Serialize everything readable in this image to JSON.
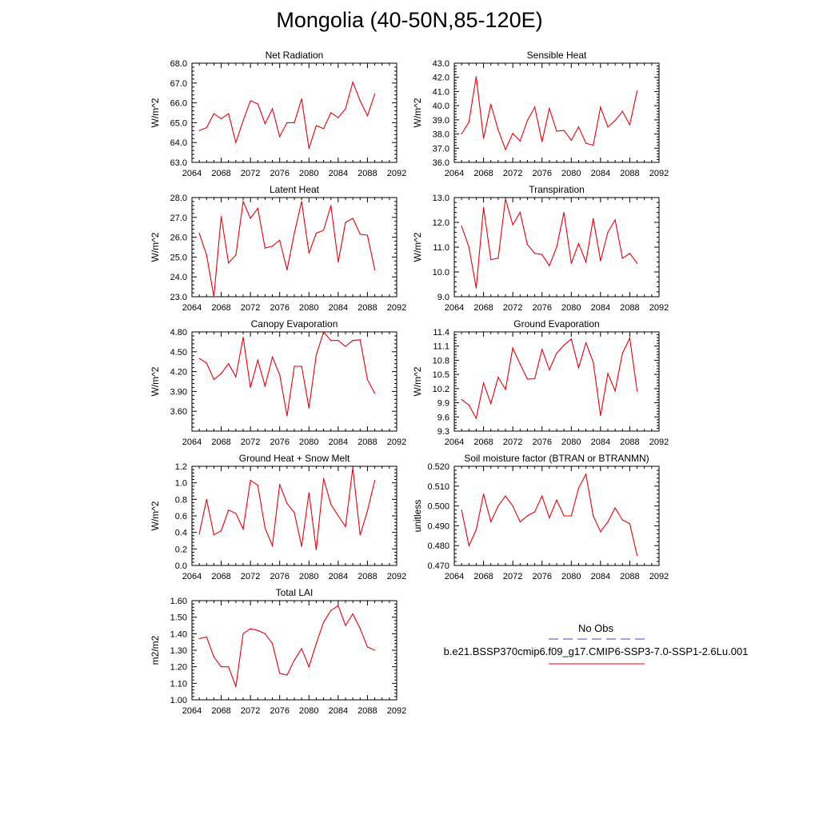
{
  "title": "Mongolia (40-50N,85-120E)",
  "colors": {
    "model_line": "#e8000b",
    "obs_line": "#4a4aa0",
    "axis": "#000000"
  },
  "legend": {
    "obs_label": "No Obs",
    "model_label": "b.e21.BSSP370cmip6.f09_g17.CMIP6-SSP3-7.0-SSP1-2.6Lu.001"
  },
  "chart_data": [
    {
      "type": "line",
      "title": "Net Radiation",
      "ylabel": "W/m^2",
      "xlim": [
        2064,
        2092
      ],
      "xticks": [
        "2064",
        "2068",
        "2072",
        "2076",
        "2080",
        "2084",
        "2088",
        "2092"
      ],
      "ylim": [
        63,
        68
      ],
      "yticks": [
        "63.0",
        "64.0",
        "65.0",
        "66.0",
        "67.0",
        "68.0"
      ],
      "series": [
        {
          "x": [
            2065,
            2066,
            2067,
            2068,
            2069,
            2070,
            2071,
            2072,
            2073,
            2074,
            2075,
            2076,
            2077,
            2078,
            2079,
            2080,
            2081,
            2082,
            2083,
            2084,
            2085,
            2086,
            2087,
            2088,
            2089
          ],
          "values": [
            64.6,
            64.75,
            65.45,
            65.2,
            65.45,
            64.0,
            65.1,
            66.1,
            65.95,
            64.95,
            65.7,
            64.3,
            65.0,
            65.0,
            66.2,
            63.7,
            64.85,
            64.7,
            65.5,
            65.25,
            65.7,
            67.05,
            66.1,
            65.35,
            66.45
          ]
        }
      ]
    },
    {
      "type": "line",
      "title": "Sensible Heat",
      "ylabel": "W/m^2",
      "xlim": [
        2064,
        2092
      ],
      "xticks": [
        "2064",
        "2068",
        "2072",
        "2076",
        "2080",
        "2084",
        "2088",
        "2092"
      ],
      "ylim": [
        36,
        43
      ],
      "yticks": [
        "36.0",
        "37.0",
        "38.0",
        "39.0",
        "40.0",
        "41.0",
        "42.0",
        "43.0"
      ],
      "series": [
        {
          "x": [
            2065,
            2066,
            2067,
            2068,
            2069,
            2070,
            2071,
            2072,
            2073,
            2074,
            2075,
            2076,
            2077,
            2078,
            2079,
            2080,
            2081,
            2082,
            2083,
            2084,
            2085,
            2086,
            2087,
            2088,
            2089
          ],
          "values": [
            38.0,
            38.85,
            42.05,
            37.7,
            40.1,
            38.3,
            36.9,
            38.05,
            37.5,
            38.95,
            39.9,
            37.45,
            39.8,
            38.2,
            38.25,
            37.55,
            38.5,
            37.35,
            37.2,
            39.9,
            38.5,
            38.95,
            39.6,
            38.65,
            41.05
          ]
        }
      ]
    },
    {
      "type": "line",
      "title": "Latent Heat",
      "ylabel": "W/m^2",
      "xlim": [
        2064,
        2092
      ],
      "xticks": [
        "2064",
        "2068",
        "2072",
        "2076",
        "2080",
        "2084",
        "2088",
        "2092"
      ],
      "ylim": [
        23,
        28
      ],
      "yticks": [
        "23.0",
        "24.0",
        "25.0",
        "26.0",
        "27.0",
        "28.0"
      ],
      "series": [
        {
          "x": [
            2065,
            2066,
            2067,
            2068,
            2069,
            2070,
            2071,
            2072,
            2073,
            2074,
            2075,
            2076,
            2077,
            2078,
            2079,
            2080,
            2081,
            2082,
            2083,
            2084,
            2085,
            2086,
            2087,
            2088,
            2089
          ],
          "values": [
            26.2,
            25.1,
            23.0,
            27.05,
            24.7,
            25.1,
            27.8,
            26.95,
            27.45,
            25.45,
            25.55,
            25.85,
            24.35,
            26.2,
            27.8,
            25.2,
            26.2,
            26.35,
            27.6,
            24.75,
            26.75,
            26.95,
            26.15,
            26.1,
            24.35
          ]
        }
      ]
    },
    {
      "type": "line",
      "title": "Transpiration",
      "ylabel": "W/m^2",
      "xlim": [
        2064,
        2092
      ],
      "xticks": [
        "2064",
        "2068",
        "2072",
        "2076",
        "2080",
        "2084",
        "2088",
        "2092"
      ],
      "ylim": [
        9,
        13
      ],
      "yticks": [
        "9.0",
        "10.0",
        "11.0",
        "12.0",
        "13.0"
      ],
      "series": [
        {
          "x": [
            2065,
            2066,
            2067,
            2068,
            2069,
            2070,
            2071,
            2072,
            2073,
            2074,
            2075,
            2076,
            2077,
            2078,
            2079,
            2080,
            2081,
            2082,
            2083,
            2084,
            2085,
            2086,
            2087,
            2088,
            2089
          ],
          "values": [
            11.85,
            11.0,
            9.35,
            12.6,
            10.5,
            10.55,
            12.95,
            11.9,
            12.4,
            11.1,
            10.75,
            10.7,
            10.25,
            11.0,
            12.4,
            10.35,
            11.15,
            10.4,
            12.15,
            10.45,
            11.6,
            12.1,
            10.55,
            10.75,
            10.35
          ]
        }
      ]
    },
    {
      "type": "line",
      "title": "Canopy Evaporation",
      "ylabel": "W/m^2",
      "xlim": [
        2064,
        2092
      ],
      "xticks": [
        "2064",
        "2068",
        "2072",
        "2076",
        "2080",
        "2084",
        "2088",
        "2092"
      ],
      "ylim": [
        3.3,
        4.8
      ],
      "yticks": [
        "3.60",
        "3.90",
        "4.20",
        "4.50",
        "4.80"
      ],
      "series": [
        {
          "x": [
            2065,
            2066,
            2067,
            2068,
            2069,
            2070,
            2071,
            2072,
            2073,
            2074,
            2075,
            2076,
            2077,
            2078,
            2079,
            2080,
            2081,
            2082,
            2083,
            2084,
            2085,
            2086,
            2087,
            2088,
            2089
          ],
          "values": [
            4.4,
            4.33,
            4.08,
            4.17,
            4.32,
            4.12,
            4.72,
            3.96,
            4.37,
            3.98,
            4.42,
            4.15,
            3.53,
            4.28,
            4.28,
            3.65,
            4.45,
            4.8,
            4.67,
            4.67,
            4.58,
            4.67,
            4.68,
            4.08,
            3.87
          ]
        }
      ]
    },
    {
      "type": "line",
      "title": "Ground Evaporation",
      "ylabel": "W/m^2",
      "xlim": [
        2064,
        2092
      ],
      "xticks": [
        "2064",
        "2068",
        "2072",
        "2076",
        "2080",
        "2084",
        "2088",
        "2092"
      ],
      "ylim": [
        9.3,
        11.4
      ],
      "yticks": [
        "9.3",
        "9.6",
        "9.9",
        "10.2",
        "10.5",
        "10.8",
        "11.1",
        "11.4"
      ],
      "series": [
        {
          "x": [
            2065,
            2066,
            2067,
            2068,
            2069,
            2070,
            2071,
            2072,
            2073,
            2074,
            2075,
            2076,
            2077,
            2078,
            2079,
            2080,
            2081,
            2082,
            2083,
            2084,
            2085,
            2086,
            2087,
            2088,
            2089
          ],
          "values": [
            9.97,
            9.85,
            9.57,
            10.32,
            9.88,
            10.44,
            10.18,
            11.06,
            10.72,
            10.4,
            10.41,
            11.03,
            10.6,
            10.95,
            11.12,
            11.25,
            10.64,
            11.17,
            10.76,
            9.63,
            10.52,
            10.15,
            10.95,
            11.27,
            10.15
          ]
        }
      ]
    },
    {
      "type": "line",
      "title": "Ground Heat + Snow Melt",
      "ylabel": "W/m^2",
      "xlim": [
        2064,
        2092
      ],
      "xticks": [
        "2064",
        "2068",
        "2072",
        "2076",
        "2080",
        "2084",
        "2088",
        "2092"
      ],
      "ylim": [
        0,
        1.2
      ],
      "yticks": [
        "0.0",
        "0.2",
        "0.4",
        "0.6",
        "0.8",
        "1.0",
        "1.2"
      ],
      "series": [
        {
          "x": [
            2065,
            2066,
            2067,
            2068,
            2069,
            2070,
            2071,
            2072,
            2073,
            2074,
            2075,
            2076,
            2077,
            2078,
            2079,
            2080,
            2081,
            2082,
            2083,
            2084,
            2085,
            2086,
            2087,
            2088,
            2089
          ],
          "values": [
            0.38,
            0.8,
            0.37,
            0.42,
            0.67,
            0.63,
            0.44,
            1.03,
            0.97,
            0.45,
            0.24,
            0.98,
            0.75,
            0.64,
            0.23,
            0.88,
            0.19,
            1.05,
            0.74,
            0.6,
            0.47,
            1.18,
            0.37,
            0.66,
            1.03
          ]
        }
      ]
    },
    {
      "type": "line",
      "title": "Soil moisture factor (BTRAN or BTRANMN)",
      "ylabel": "unitless",
      "xlim": [
        2064,
        2092
      ],
      "xticks": [
        "2064",
        "2068",
        "2072",
        "2076",
        "2080",
        "2084",
        "2088",
        "2092"
      ],
      "ylim": [
        0.47,
        0.52
      ],
      "yticks": [
        "0.470",
        "0.480",
        "0.490",
        "0.500",
        "0.510",
        "0.520"
      ],
      "series": [
        {
          "x": [
            2065,
            2066,
            2067,
            2068,
            2069,
            2070,
            2071,
            2072,
            2073,
            2074,
            2075,
            2076,
            2077,
            2078,
            2079,
            2080,
            2081,
            2082,
            2083,
            2084,
            2085,
            2086,
            2087,
            2088,
            2089
          ],
          "values": [
            0.498,
            0.48,
            0.488,
            0.506,
            0.492,
            0.5,
            0.505,
            0.5,
            0.492,
            0.495,
            0.497,
            0.505,
            0.494,
            0.503,
            0.495,
            0.495,
            0.509,
            0.516,
            0.495,
            0.487,
            0.492,
            0.499,
            0.493,
            0.491,
            0.475
          ]
        }
      ]
    },
    {
      "type": "line",
      "title": "Total LAI",
      "ylabel": "m2/m2",
      "xlim": [
        2064,
        2092
      ],
      "xticks": [
        "2064",
        "2068",
        "2072",
        "2076",
        "2080",
        "2084",
        "2088",
        "2092"
      ],
      "ylim": [
        1.0,
        1.6
      ],
      "yticks": [
        "1.00",
        "1.10",
        "1.20",
        "1.30",
        "1.40",
        "1.50",
        "1.60"
      ],
      "series": [
        {
          "x": [
            2065,
            2066,
            2067,
            2068,
            2069,
            2070,
            2071,
            2072,
            2073,
            2074,
            2075,
            2076,
            2077,
            2078,
            2079,
            2080,
            2081,
            2082,
            2083,
            2084,
            2085,
            2086,
            2087,
            2088,
            2089
          ],
          "values": [
            1.37,
            1.38,
            1.26,
            1.2,
            1.2,
            1.08,
            1.4,
            1.43,
            1.42,
            1.4,
            1.34,
            1.16,
            1.15,
            1.24,
            1.31,
            1.2,
            1.34,
            1.47,
            1.54,
            1.57,
            1.45,
            1.52,
            1.43,
            1.32,
            1.3
          ]
        }
      ]
    }
  ]
}
